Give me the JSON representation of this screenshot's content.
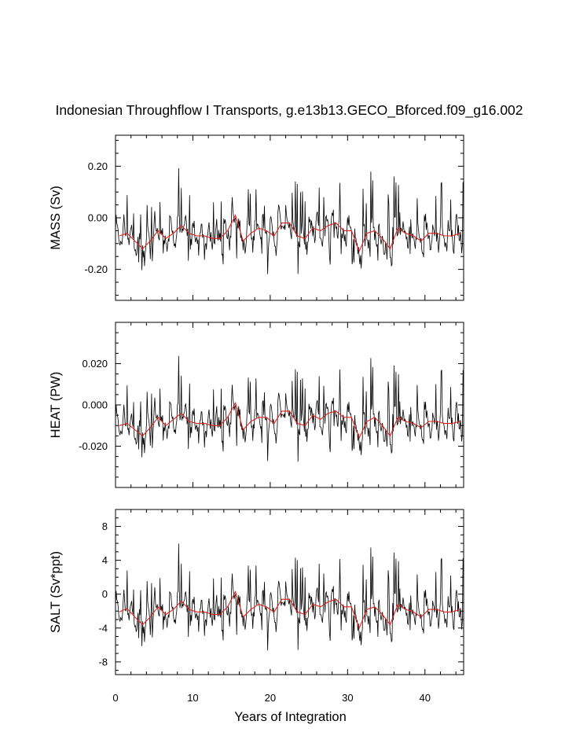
{
  "title": "Indonesian Throughflow I Transports, g.e13b13.GECO_Bforced.f09_g16.002",
  "colors": {
    "monthly": "#000000",
    "annual": "#e0201b"
  },
  "chart_data": [
    {
      "type": "line",
      "name": "mass",
      "ylabel": "MASS (Sv)",
      "xlim": [
        0,
        45
      ],
      "ylim": [
        -0.32,
        0.32
      ],
      "yticks": [
        -0.2,
        0.0,
        0.2
      ],
      "ytick_labels": [
        "-0.20",
        "0.00",
        "0.20"
      ],
      "xtick_labels": [],
      "series": [
        {
          "name": "annual mean",
          "x": [
            0.5,
            1.5,
            2.5,
            3.5,
            4.5,
            5.5,
            6.5,
            7.5,
            8.5,
            9.5,
            10.5,
            11.5,
            12.5,
            13.5,
            14.5,
            15.5,
            16.5,
            17.5,
            18.5,
            19.5,
            20.5,
            21.5,
            22.5,
            23.5,
            24.5,
            25.5,
            26.5,
            27.5,
            28.5,
            29.5,
            30.5,
            31.5,
            32.5,
            33.5,
            34.5,
            35.5,
            36.5,
            37.5,
            38.5,
            39.5,
            40.5,
            41.5,
            42.5,
            43.5,
            44.5
          ],
          "values": [
            -0.07,
            -0.06,
            -0.09,
            -0.12,
            -0.09,
            -0.05,
            -0.08,
            -0.06,
            -0.03,
            -0.06,
            -0.07,
            -0.07,
            -0.08,
            -0.08,
            -0.05,
            0.01,
            -0.09,
            -0.06,
            -0.04,
            -0.05,
            -0.07,
            -0.02,
            -0.02,
            -0.07,
            -0.08,
            -0.04,
            -0.05,
            -0.03,
            -0.02,
            -0.05,
            -0.05,
            -0.13,
            -0.06,
            -0.05,
            -0.08,
            -0.12,
            -0.04,
            -0.06,
            -0.07,
            -0.09,
            -0.06,
            -0.06,
            -0.07,
            -0.07,
            -0.06
          ]
        }
      ]
    },
    {
      "type": "line",
      "name": "heat",
      "ylabel": "HEAT (PW)",
      "xlim": [
        0,
        45
      ],
      "ylim": [
        -0.04,
        0.04
      ],
      "yticks": [
        -0.02,
        0.0,
        0.02
      ],
      "ytick_labels": [
        "-0.020",
        "0.000",
        "0.020"
      ],
      "xtick_labels": [],
      "series": [
        {
          "name": "annual mean",
          "x": [
            0.5,
            1.5,
            2.5,
            3.5,
            4.5,
            5.5,
            6.5,
            7.5,
            8.5,
            9.5,
            10.5,
            11.5,
            12.5,
            13.5,
            14.5,
            15.5,
            16.5,
            17.5,
            18.5,
            19.5,
            20.5,
            21.5,
            22.5,
            23.5,
            24.5,
            25.5,
            26.5,
            27.5,
            28.5,
            29.5,
            30.5,
            31.5,
            32.5,
            33.5,
            34.5,
            35.5,
            36.5,
            37.5,
            38.5,
            39.5,
            40.5,
            41.5,
            42.5,
            43.5,
            44.5
          ],
          "values": [
            -0.01,
            -0.009,
            -0.012,
            -0.015,
            -0.011,
            -0.006,
            -0.01,
            -0.007,
            -0.004,
            -0.008,
            -0.009,
            -0.009,
            -0.01,
            -0.01,
            -0.006,
            0.001,
            -0.012,
            -0.008,
            -0.006,
            -0.006,
            -0.009,
            -0.003,
            -0.003,
            -0.009,
            -0.01,
            -0.005,
            -0.007,
            -0.004,
            -0.003,
            -0.006,
            -0.006,
            -0.016,
            -0.008,
            -0.006,
            -0.01,
            -0.015,
            -0.006,
            -0.008,
            -0.009,
            -0.011,
            -0.008,
            -0.008,
            -0.009,
            -0.009,
            -0.008
          ]
        }
      ]
    },
    {
      "type": "line",
      "name": "salt",
      "ylabel": "SALT (Sv*ppt)",
      "xlabel": "Years of Integration",
      "xlim": [
        0,
        45
      ],
      "ylim": [
        -9.5,
        10
      ],
      "yticks": [
        -8,
        -4,
        0,
        4,
        8
      ],
      "ytick_labels": [
        "-8",
        "-4",
        "0",
        "4",
        "8"
      ],
      "xticks": [
        0,
        10,
        20,
        30,
        40
      ],
      "xtick_labels": [
        "0",
        "10",
        "20",
        "30",
        "40"
      ],
      "series": [
        {
          "name": "annual mean",
          "x": [
            0.5,
            1.5,
            2.5,
            3.5,
            4.5,
            5.5,
            6.5,
            7.5,
            8.5,
            9.5,
            10.5,
            11.5,
            12.5,
            13.5,
            14.5,
            15.5,
            16.5,
            17.5,
            18.5,
            19.5,
            20.5,
            21.5,
            22.5,
            23.5,
            24.5,
            25.5,
            26.5,
            27.5,
            28.5,
            29.5,
            30.5,
            31.5,
            32.5,
            33.5,
            34.5,
            35.5,
            36.5,
            37.5,
            38.5,
            39.5,
            40.5,
            41.5,
            42.5,
            43.5,
            44.5
          ],
          "values": [
            -2.1,
            -1.7,
            -2.7,
            -3.6,
            -2.7,
            -1.5,
            -2.4,
            -1.8,
            -0.8,
            -1.8,
            -2.1,
            -2.1,
            -2.4,
            -2.4,
            -1.5,
            0.3,
            -2.7,
            -1.8,
            -1.2,
            -1.5,
            -2.1,
            -0.6,
            -0.6,
            -2.1,
            -2.4,
            -1.2,
            -1.5,
            -0.9,
            -0.6,
            -1.5,
            -1.5,
            -4.0,
            -1.8,
            -1.5,
            -2.4,
            -3.6,
            -1.2,
            -1.8,
            -2.1,
            -2.7,
            -1.8,
            -1.8,
            -2.1,
            -2.1,
            -1.8
          ]
        }
      ]
    }
  ]
}
